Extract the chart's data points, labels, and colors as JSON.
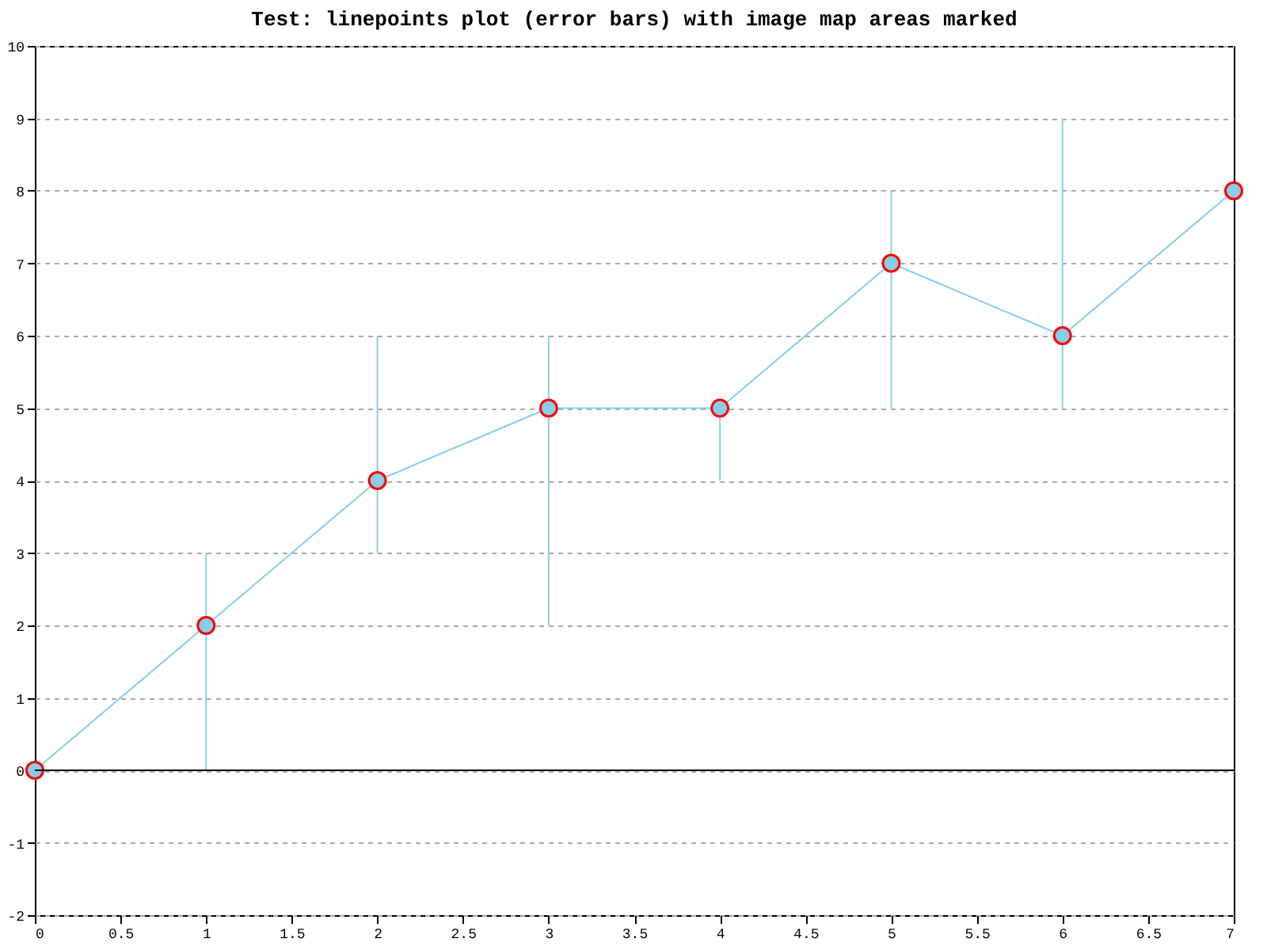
{
  "chart_data": {
    "type": "line",
    "title": "Test: linepoints plot (error bars) with image map areas marked",
    "x": [
      0,
      1,
      2,
      3,
      4,
      5,
      6,
      7
    ],
    "series": [
      {
        "color": "#87ceeb",
        "values": [
          0,
          2,
          4,
          5,
          5,
          7,
          6,
          8
        ],
        "errors": [
          null,
          [
            0,
            3
          ],
          [
            3,
            6
          ],
          [
            2,
            6
          ],
          [
            4,
            5
          ],
          [
            5,
            8
          ],
          [
            5,
            9
          ],
          null
        ]
      }
    ],
    "marker": "circle",
    "xlim": [
      0,
      7
    ],
    "xticks": [
      0,
      0.5,
      1,
      1.5,
      2,
      2.5,
      3,
      3.5,
      4,
      4.5,
      5,
      5.5,
      6,
      6.5,
      7
    ],
    "ylim": [
      -2,
      10
    ],
    "yticks": [
      -2,
      -1,
      0,
      1,
      2,
      3,
      4,
      5,
      6,
      7,
      8,
      9,
      10
    ],
    "grid": "y",
    "ref_lines": [
      {
        "axis": "y",
        "value": 0,
        "color": "#000000"
      }
    ]
  }
}
